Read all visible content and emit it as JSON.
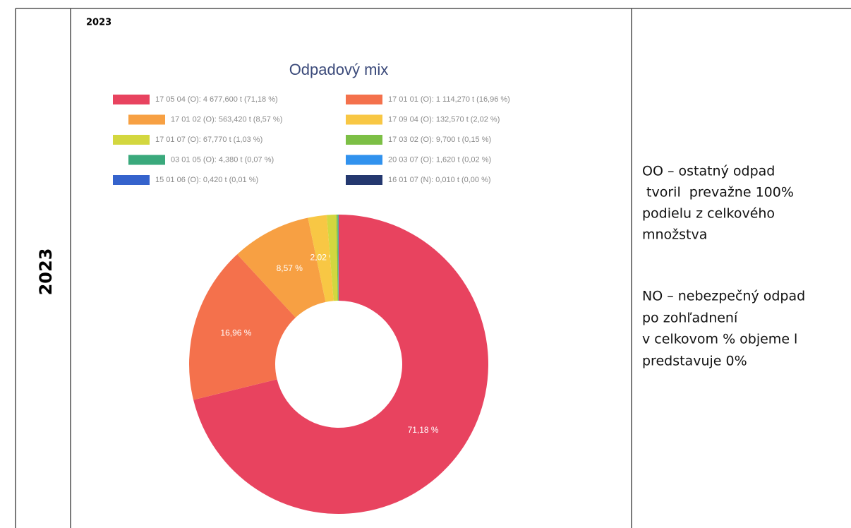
{
  "row_label": "2023",
  "cell_heading": "2023",
  "chart_data": {
    "type": "donut",
    "title": "Odpadový mix",
    "categories": [
      "17 05 04 (O): 4 677,600 t (71,18 %)",
      "17 01 01 (O): 1 114,270 t (16,96 %)",
      "17 01 02 (O): 563,420 t (8,57 %)",
      "17 09 04 (O): 132,570 t (2,02 %)",
      "17 01 07 (O): 67,770 t (1,03 %)",
      "17 03 02 (O): 9,700 t (0,15 %)",
      "03 01 05 (O): 4,380 t (0,07 %)",
      "20 03 07 (O): 1,620 t (0,02 %)",
      "15 01 06 (O): 0,420 t (0,01 %)",
      "16 01 07 (N): 0,010 t (0,00 %)"
    ],
    "values": [
      71.18,
      16.96,
      8.57,
      2.02,
      1.03,
      0.15,
      0.07,
      0.02,
      0.01,
      0.0
    ],
    "value_labels": [
      "71,18 %",
      "16,96 %",
      "8,57 %",
      "2,02 %",
      null,
      null,
      null,
      null,
      null,
      null
    ],
    "colors": [
      "#e8435f",
      "#f4714c",
      "#f7a043",
      "#f8c744",
      "#d3d73f",
      "#7cbf45",
      "#3aa97c",
      "#3192ee",
      "#3563cc",
      "#24386f"
    ]
  },
  "notes": [
    "OO – ostatný odpad",
    " tvoril  prevažne 100%",
    "podielu z celkového",
    "množstva",
    "NO – nebezpečný odpad",
    "po zohľadnení",
    "v celkovom % objeme l",
    "predstavuje 0%"
  ]
}
